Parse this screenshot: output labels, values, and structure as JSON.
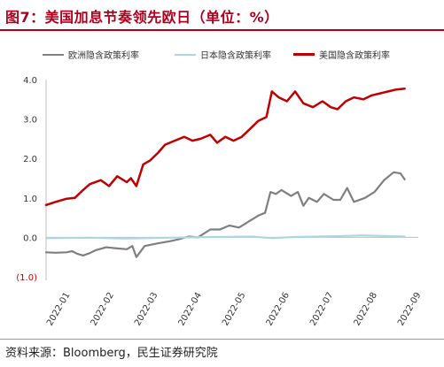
{
  "page": {
    "title": "图7：美国加息节奏领先欧日（单位：%）",
    "source": "资料来源：Bloomberg，民生证券研究院"
  },
  "colors": {
    "eu": "#7f7f7f",
    "jp": "#acd6e6",
    "us": "#c00000"
  },
  "chart_data": {
    "type": "line",
    "title": "美国加息节奏领先欧日",
    "ylabel": "单位：%",
    "xlabel": "",
    "ylim": [
      -1.0,
      4.0
    ],
    "yticks": [
      4.0,
      3.0,
      2.0,
      1.0,
      0.0,
      -1.0
    ],
    "ytick_labels": [
      "4.0",
      "3.0",
      "2.0",
      "1.0",
      "0.0",
      "(1.0)"
    ],
    "xlim": [
      "2022-01-01",
      "2022-09-30"
    ],
    "x_tick_labels": [
      "2022-01",
      "2022-02",
      "2022-03",
      "2022-04",
      "2022-05",
      "2022-06",
      "2022-07",
      "2022-08",
      "2022-09"
    ],
    "legend_position": "top",
    "grid": false,
    "series": [
      {
        "name": "欧洲隐含政策利率",
        "color_key": "eu",
        "points": [
          [
            "2022-01-01",
            -0.38
          ],
          [
            "2022-01-08",
            -0.39
          ],
          [
            "2022-01-16",
            -0.38
          ],
          [
            "2022-01-20",
            -0.35
          ],
          [
            "2022-01-24",
            -0.42
          ],
          [
            "2022-01-28",
            -0.46
          ],
          [
            "2022-02-02",
            -0.4
          ],
          [
            "2022-02-06",
            -0.33
          ],
          [
            "2022-02-14",
            -0.25
          ],
          [
            "2022-02-22",
            -0.28
          ],
          [
            "2022-03-01",
            -0.3
          ],
          [
            "2022-03-05",
            -0.22
          ],
          [
            "2022-03-08",
            -0.5
          ],
          [
            "2022-03-14",
            -0.22
          ],
          [
            "2022-03-24",
            -0.15
          ],
          [
            "2022-04-01",
            -0.1
          ],
          [
            "2022-04-08",
            -0.05
          ],
          [
            "2022-04-15",
            0.02
          ],
          [
            "2022-04-22",
            0.0
          ],
          [
            "2022-05-01",
            0.2
          ],
          [
            "2022-05-08",
            0.2
          ],
          [
            "2022-05-15",
            0.3
          ],
          [
            "2022-05-22",
            0.25
          ],
          [
            "2022-05-29",
            0.4
          ],
          [
            "2022-06-05",
            0.55
          ],
          [
            "2022-06-10",
            0.62
          ],
          [
            "2022-06-14",
            1.15
          ],
          [
            "2022-06-18",
            1.1
          ],
          [
            "2022-06-22",
            1.2
          ],
          [
            "2022-06-29",
            1.05
          ],
          [
            "2022-07-04",
            1.15
          ],
          [
            "2022-07-08",
            0.8
          ],
          [
            "2022-07-12",
            1.0
          ],
          [
            "2022-07-18",
            0.9
          ],
          [
            "2022-07-23",
            1.1
          ],
          [
            "2022-07-30",
            0.95
          ],
          [
            "2022-08-04",
            0.95
          ],
          [
            "2022-08-09",
            1.25
          ],
          [
            "2022-08-14",
            0.9
          ],
          [
            "2022-08-22",
            1.0
          ],
          [
            "2022-08-29",
            1.15
          ],
          [
            "2022-09-05",
            1.45
          ],
          [
            "2022-09-12",
            1.65
          ],
          [
            "2022-09-17",
            1.62
          ],
          [
            "2022-09-20",
            1.47
          ]
        ]
      },
      {
        "name": "日本隐含政策利率",
        "color_key": "jp",
        "points": [
          [
            "2022-01-01",
            -0.02
          ],
          [
            "2022-02-01",
            -0.01
          ],
          [
            "2022-03-01",
            -0.03
          ],
          [
            "2022-04-01",
            -0.01
          ],
          [
            "2022-05-01",
            0.01
          ],
          [
            "2022-06-01",
            0.02
          ],
          [
            "2022-06-15",
            -0.02
          ],
          [
            "2022-07-01",
            0.01
          ],
          [
            "2022-08-01",
            0.03
          ],
          [
            "2022-08-20",
            0.05
          ],
          [
            "2022-09-20",
            0.02
          ]
        ]
      },
      {
        "name": "美国隐含政策利率",
        "color_key": "us",
        "points": [
          [
            "2022-01-01",
            0.82
          ],
          [
            "2022-01-08",
            0.9
          ],
          [
            "2022-01-16",
            0.98
          ],
          [
            "2022-01-22",
            1.0
          ],
          [
            "2022-01-28",
            1.2
          ],
          [
            "2022-02-02",
            1.35
          ],
          [
            "2022-02-10",
            1.45
          ],
          [
            "2022-02-16",
            1.3
          ],
          [
            "2022-02-22",
            1.55
          ],
          [
            "2022-03-01",
            1.4
          ],
          [
            "2022-03-04",
            1.5
          ],
          [
            "2022-03-08",
            1.3
          ],
          [
            "2022-03-13",
            1.85
          ],
          [
            "2022-03-18",
            1.95
          ],
          [
            "2022-03-24",
            2.15
          ],
          [
            "2022-03-29",
            2.35
          ],
          [
            "2022-04-05",
            2.45
          ],
          [
            "2022-04-12",
            2.55
          ],
          [
            "2022-04-18",
            2.45
          ],
          [
            "2022-04-24",
            2.5
          ],
          [
            "2022-05-01",
            2.6
          ],
          [
            "2022-05-06",
            2.4
          ],
          [
            "2022-05-12",
            2.55
          ],
          [
            "2022-05-18",
            2.45
          ],
          [
            "2022-05-24",
            2.55
          ],
          [
            "2022-05-30",
            2.75
          ],
          [
            "2022-06-05",
            2.95
          ],
          [
            "2022-06-11",
            3.05
          ],
          [
            "2022-06-15",
            3.7
          ],
          [
            "2022-06-20",
            3.55
          ],
          [
            "2022-06-26",
            3.45
          ],
          [
            "2022-07-02",
            3.7
          ],
          [
            "2022-07-08",
            3.4
          ],
          [
            "2022-07-15",
            3.3
          ],
          [
            "2022-07-22",
            3.45
          ],
          [
            "2022-07-28",
            3.3
          ],
          [
            "2022-08-02",
            3.25
          ],
          [
            "2022-08-08",
            3.45
          ],
          [
            "2022-08-14",
            3.55
          ],
          [
            "2022-08-21",
            3.5
          ],
          [
            "2022-08-27",
            3.6
          ],
          [
            "2022-09-02",
            3.65
          ],
          [
            "2022-09-08",
            3.7
          ],
          [
            "2022-09-14",
            3.75
          ],
          [
            "2022-09-20",
            3.77
          ]
        ]
      }
    ]
  }
}
